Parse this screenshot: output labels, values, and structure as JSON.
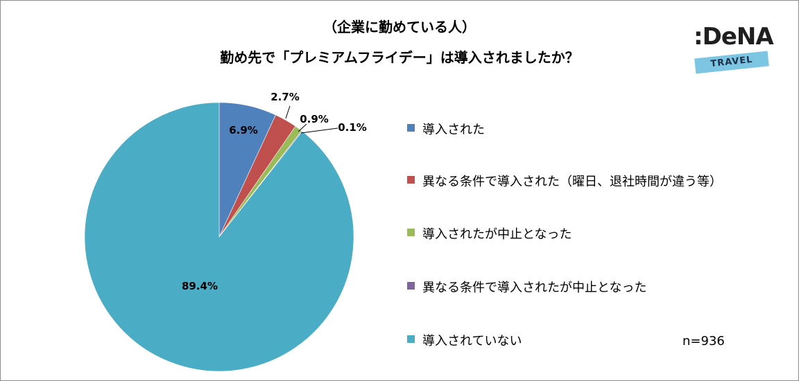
{
  "title_line1": "（企業に勤めている人）",
  "title_line2": "勤め先で「プレミアムフライデー」は導入されましたか？",
  "logo": {
    "word": ":DeNA",
    "band": "TRAVEL"
  },
  "sample_size": "n=936",
  "chart_data": {
    "type": "pie",
    "title": "勤め先で「プレミアムフライデー」は導入されましたか？",
    "subtitle": "（企業に勤めている人）",
    "legend_position": "right",
    "slices": [
      {
        "label": "導入された",
        "value": 6.9,
        "display": "6.9%",
        "color": "#4f81bd"
      },
      {
        "label": "異なる条件で導入された（曜日、退社時間が違う等）",
        "value": 2.7,
        "display": "2.7%",
        "color": "#c0504d"
      },
      {
        "label": "導入されたが中止となった",
        "value": 0.9,
        "display": "0.9%",
        "color": "#9bbb59"
      },
      {
        "label": "異なる条件で導入されたが中止となった",
        "value": 0.1,
        "display": "0.1%",
        "color": "#8064a2"
      },
      {
        "label": "導入されていない",
        "value": 89.4,
        "display": "89.4%",
        "color": "#4bacc6"
      }
    ]
  }
}
